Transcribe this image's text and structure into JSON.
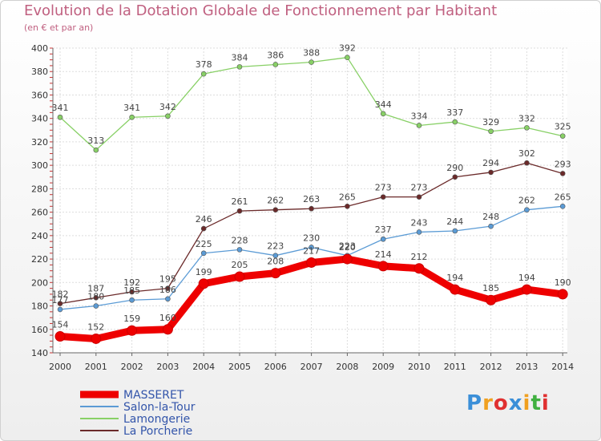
{
  "chart_data": {
    "type": "line",
    "title": "Evolution de la Dotation Globale de Fonctionnement par Habitant",
    "subtitle": "(en € et par an)",
    "xlabel": "",
    "ylabel": "",
    "categories": [
      "2000",
      "2001",
      "2002",
      "2003",
      "2004",
      "2005",
      "2006",
      "2007",
      "2008",
      "2009",
      "2010",
      "2011",
      "2012",
      "2013",
      "2014"
    ],
    "ylim": [
      140,
      400
    ],
    "yticks": [
      140,
      160,
      180,
      200,
      220,
      240,
      260,
      280,
      300,
      320,
      340,
      360,
      380,
      400
    ],
    "grid": true,
    "legend_position": "bottom-left",
    "series": [
      {
        "name": "La Porcherie",
        "color": "#6b2a2a",
        "values": [
          182,
          187,
          192,
          195,
          246,
          261,
          262,
          263,
          265,
          273,
          273,
          290,
          294,
          302,
          293
        ]
      },
      {
        "name": "Lamongerie",
        "color": "#88d066",
        "values": [
          341,
          313,
          341,
          342,
          378,
          384,
          386,
          388,
          392,
          344,
          334,
          337,
          329,
          332,
          325
        ]
      },
      {
        "name": "Salon-la-Tour",
        "color": "#5b9bd5",
        "values": [
          177,
          180,
          185,
          186,
          225,
          228,
          223,
          230,
          223,
          237,
          243,
          244,
          248,
          262,
          265
        ]
      },
      {
        "name": "MASSERET",
        "color": "#ee0000",
        "values": [
          154,
          152,
          159,
          160,
          199,
          205,
          208,
          217,
          220,
          214,
          212,
          194,
          185,
          194,
          190
        ]
      }
    ],
    "legend_order": [
      "MASSERET",
      "Salon-la-Tour",
      "Lamongerie",
      "La Porcherie"
    ]
  },
  "logo": {
    "letters": [
      "P",
      "r",
      "o",
      "x",
      "i",
      "t",
      "i"
    ],
    "colors": [
      "#3b8fd8",
      "#f0a020",
      "#e03030",
      "#3b8fd8",
      "#f0a020",
      "#40b040",
      "#e03030"
    ]
  }
}
